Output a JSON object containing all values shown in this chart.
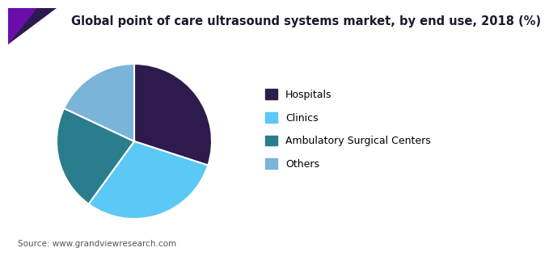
{
  "title": "Global point of care ultrasound systems market, by end use, 2018 (%)",
  "source": "Source: www.grandviewresearch.com",
  "labels": [
    "Hospitals",
    "Clinics",
    "Ambulatory Surgical Centers",
    "Others"
  ],
  "values": [
    30,
    30,
    22,
    18
  ],
  "colors": [
    "#2d1b4e",
    "#5bc8f5",
    "#2a7d8c",
    "#7ab4d8"
  ],
  "startangle": 90,
  "title_fontsize": 10.5,
  "legend_fontsize": 9,
  "source_fontsize": 7.5,
  "bg_color": "#ffffff",
  "wedge_edge_color": "#ffffff",
  "title_color": "#1a1a2e",
  "line_color": "#6a0dad",
  "accent_dark": "#2d1b4e",
  "accent_purple": "#6a0dad"
}
